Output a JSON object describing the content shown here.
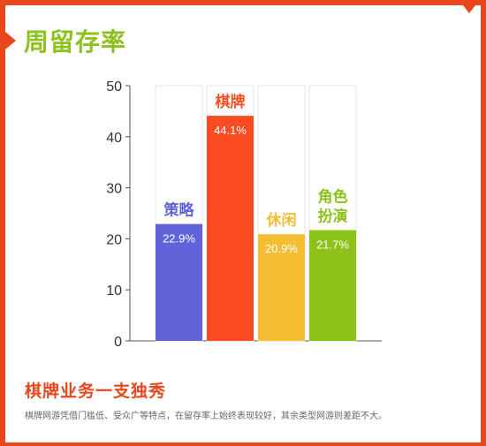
{
  "colors": {
    "frame": "#e8461c",
    "title": "#8dc21f",
    "bottom_title": "#e8461c",
    "axis": "#555555",
    "bar_bg_border": "#e6e6e6"
  },
  "header": {
    "title": "周留存率"
  },
  "chart_data": {
    "type": "bar",
    "categories": [
      "策略",
      "棋牌",
      "休闲",
      "角色扮演"
    ],
    "category_lines": [
      [
        "策略"
      ],
      [
        "棋牌"
      ],
      [
        "休闲"
      ],
      [
        "角色",
        "扮演"
      ]
    ],
    "values": [
      22.9,
      44.1,
      20.9,
      21.7
    ],
    "value_labels": [
      "22.9%",
      "44.1%",
      "20.9%",
      "21.7%"
    ],
    "colors": [
      "#6064d8",
      "#fb4b21",
      "#f4bd33",
      "#8cc21a"
    ],
    "yticks": [
      0,
      10,
      20,
      30,
      40,
      50
    ],
    "ylim": [
      0,
      50
    ],
    "grid": false,
    "title": "",
    "xlabel": "",
    "ylabel": ""
  },
  "footer": {
    "title": "棋牌业务一支独秀",
    "description": "棋牌网游凭借门槛低、受众广等特点，在留存率上始终表现较好，其余类型网游则差距不大。"
  }
}
